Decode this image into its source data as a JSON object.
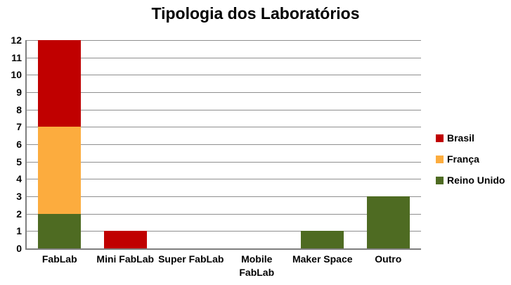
{
  "chart_data": {
    "type": "bar",
    "stacked": true,
    "title": "Tipologia dos Laboratórios",
    "categories": [
      "FabLab",
      "Mini FabLab",
      "Super FabLab",
      "Mobile FabLab",
      "Maker Space",
      "Outro"
    ],
    "category_label_lines": [
      [
        "FabLab"
      ],
      [
        "Mini FabLab"
      ],
      [
        "Super FabLab"
      ],
      [
        "Mobile",
        "FabLab"
      ],
      [
        "Maker Space"
      ],
      [
        "Outro"
      ]
    ],
    "series": [
      {
        "name": "Brasil",
        "color": "#C00000",
        "values": [
          5,
          1,
          0,
          0,
          0,
          0
        ]
      },
      {
        "name": "França",
        "color": "#FCAC3E",
        "values": [
          5,
          0,
          0,
          0,
          0,
          0
        ]
      },
      {
        "name": "Reino Unido",
        "color": "#4E6B22",
        "values": [
          2,
          0,
          0,
          0,
          1,
          3
        ]
      }
    ],
    "stack_order_bottom_to_top": [
      "Reino Unido",
      "França",
      "Brasil"
    ],
    "xlabel": "",
    "ylabel": "",
    "ylim": [
      0,
      12
    ],
    "yticks": [
      0,
      1,
      2,
      3,
      4,
      5,
      6,
      7,
      8,
      9,
      10,
      11,
      12
    ],
    "grid": true,
    "legend_position": "right"
  },
  "colors": {
    "axis": "#7F7F7F",
    "gridline": "#8F8F8F",
    "text": "#000000",
    "background": "#FFFFFF"
  }
}
